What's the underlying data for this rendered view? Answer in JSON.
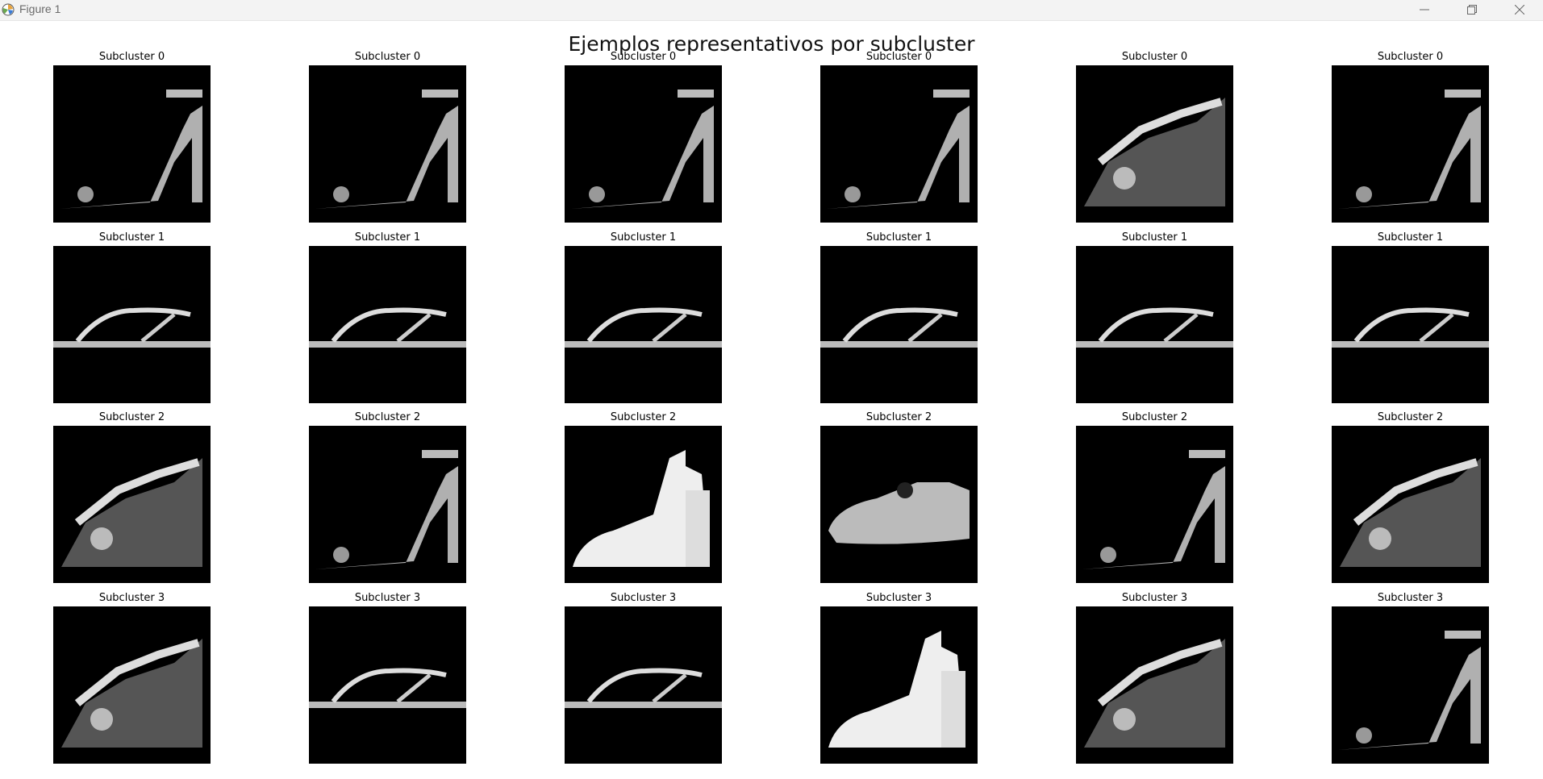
{
  "window": {
    "title": "Figure 1"
  },
  "figure": {
    "title": "Ejemplos representativos por subcluster"
  },
  "panels": [
    {
      "label": "Subcluster 0",
      "shape": "heel"
    },
    {
      "label": "Subcluster 0",
      "shape": "heel"
    },
    {
      "label": "Subcluster 0",
      "shape": "heel"
    },
    {
      "label": "Subcluster 0",
      "shape": "heel"
    },
    {
      "label": "Subcluster 0",
      "shape": "wedge"
    },
    {
      "label": "Subcluster 0",
      "shape": "heel"
    },
    {
      "label": "Subcluster 1",
      "shape": "flat"
    },
    {
      "label": "Subcluster 1",
      "shape": "flat"
    },
    {
      "label": "Subcluster 1",
      "shape": "flat"
    },
    {
      "label": "Subcluster 1",
      "shape": "flat"
    },
    {
      "label": "Subcluster 1",
      "shape": "flat"
    },
    {
      "label": "Subcluster 1",
      "shape": "flat"
    },
    {
      "label": "Subcluster 2",
      "shape": "wedge"
    },
    {
      "label": "Subcluster 2",
      "shape": "heel"
    },
    {
      "label": "Subcluster 2",
      "shape": "block"
    },
    {
      "label": "Subcluster 2",
      "shape": "shoe"
    },
    {
      "label": "Subcluster 2",
      "shape": "heel"
    },
    {
      "label": "Subcluster 2",
      "shape": "wedge"
    },
    {
      "label": "Subcluster 3",
      "shape": "wedge"
    },
    {
      "label": "Subcluster 3",
      "shape": "flat"
    },
    {
      "label": "Subcluster 3",
      "shape": "flat"
    },
    {
      "label": "Subcluster 3",
      "shape": "block"
    },
    {
      "label": "Subcluster 3",
      "shape": "wedge"
    },
    {
      "label": "Subcluster 3",
      "shape": "heel"
    }
  ],
  "icons": {
    "minimize": "minimize-icon",
    "maximize": "restore-icon",
    "close": "close-icon",
    "app": "matplotlib-icon"
  }
}
